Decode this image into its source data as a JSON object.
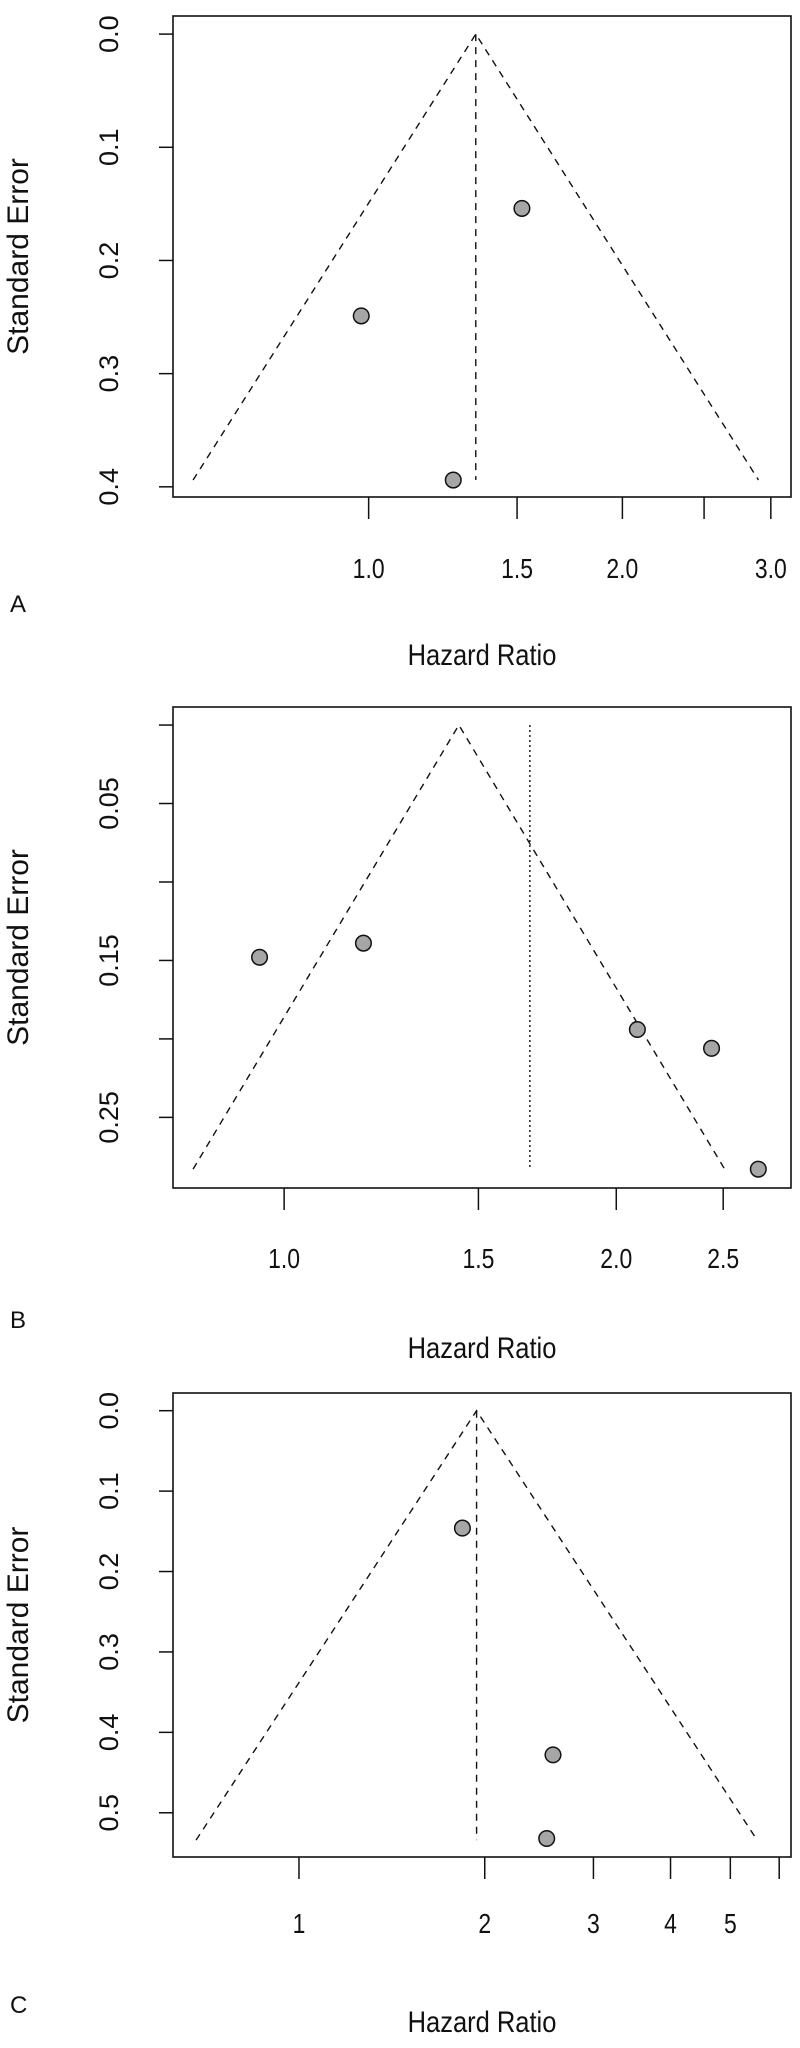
{
  "chart_data": [
    {
      "type": "scatter",
      "subtype": "funnel",
      "panel_label": "A",
      "xlabel": "Hazard Ratio",
      "ylabel": "Standard Error",
      "x_scale": "log",
      "xlim": [
        0.586,
        3.17
      ],
      "ylim": [
        0.409,
        -0.016
      ],
      "x_ticks": [
        1.0,
        1.5,
        2.0,
        2.5,
        3.0
      ],
      "x_tick_labels": [
        "1.0",
        "1.5",
        "2.0",
        "",
        "3.0"
      ],
      "y_ticks": [
        0.0,
        0.1,
        0.2,
        0.3,
        0.4
      ],
      "y_tick_labels": [
        "0.0",
        "0.1",
        "0.2",
        "0.3",
        "0.4"
      ],
      "funnel_center_hr": 1.34,
      "funnel_max_se": 0.394,
      "vertical_line": {
        "hr": 1.34,
        "style": "dashed"
      },
      "points": [
        {
          "hr": 1.52,
          "se": 0.154
        },
        {
          "hr": 0.98,
          "se": 0.249
        },
        {
          "hr": 1.26,
          "se": 0.394
        }
      ],
      "grid": false,
      "point_color": "#a6a6a6"
    },
    {
      "type": "scatter",
      "subtype": "funnel",
      "panel_label": "B",
      "xlabel": "Hazard Ratio",
      "ylabel": "Standard Error",
      "x_scale": "log",
      "xlim": [
        0.793,
        2.88
      ],
      "ylim": [
        0.295,
        -0.0115
      ],
      "x_ticks": [
        1.0,
        1.5,
        2.0,
        2.5
      ],
      "x_tick_labels": [
        "1.0",
        "1.5",
        "2.0",
        "2.5"
      ],
      "y_ticks": [
        0.0,
        0.05,
        0.1,
        0.15,
        0.2,
        0.25
      ],
      "y_tick_labels": [
        "",
        "0.05",
        "",
        "0.15",
        "",
        "0.25"
      ],
      "funnel_center_hr": 1.44,
      "funnel_max_se": 0.283,
      "vertical_line": {
        "hr": 1.67,
        "style": "dotted"
      },
      "points": [
        {
          "hr": 0.95,
          "se": 0.148
        },
        {
          "hr": 1.18,
          "se": 0.139
        },
        {
          "hr": 2.09,
          "se": 0.194
        },
        {
          "hr": 2.44,
          "se": 0.206
        },
        {
          "hr": 2.69,
          "se": 0.283
        }
      ],
      "grid": false,
      "point_color": "#a6a6a6"
    },
    {
      "type": "scatter",
      "subtype": "funnel",
      "panel_label": "C",
      "xlabel": "Hazard Ratio",
      "ylabel": "Standard Error",
      "x_scale": "log",
      "xlim": [
        0.625,
        6.27
      ],
      "ylim": [
        0.555,
        -0.022
      ],
      "x_ticks": [
        1,
        2,
        3,
        4,
        5,
        6
      ],
      "x_tick_labels": [
        "1",
        "2",
        "3",
        "4",
        "5",
        ""
      ],
      "y_ticks": [
        0.0,
        0.1,
        0.2,
        0.3,
        0.4,
        0.5
      ],
      "y_tick_labels": [
        "0.0",
        "0.1",
        "0.2",
        "0.3",
        "0.4",
        "0.5"
      ],
      "funnel_center_hr": 1.94,
      "funnel_max_se": 0.534,
      "vertical_line": {
        "hr": 1.94,
        "style": "dashed"
      },
      "points": [
        {
          "hr": 1.84,
          "se": 0.146
        },
        {
          "hr": 2.58,
          "se": 0.428
        },
        {
          "hr": 2.52,
          "se": 0.532
        }
      ],
      "grid": false,
      "point_color": "#a6a6a6"
    }
  ]
}
